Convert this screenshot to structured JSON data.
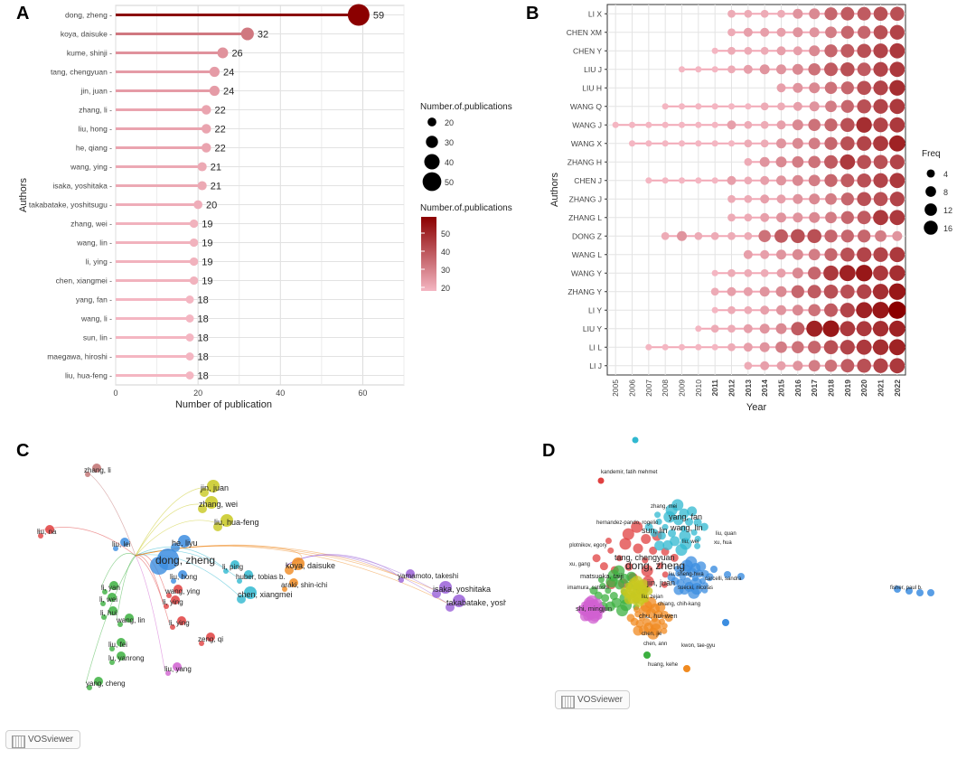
{
  "panels": {
    "a": "A",
    "b": "B",
    "c": "C",
    "d": "D"
  },
  "chart_data": [
    {
      "type": "lollipop",
      "panel": "A",
      "xlabel": "Number of publication",
      "ylabel": "Authors",
      "xlim": [
        0,
        70
      ],
      "xticks": [
        0,
        20,
        40,
        60
      ],
      "categories": [
        "dong, zheng",
        "koya, daisuke",
        "kume, shinji",
        "tang, chengyuan",
        "jin, juan",
        "zhang, li",
        "liu, hong",
        "he, qiang",
        "wang, ying",
        "isaka, yoshitaka",
        "takabatake, yoshitsugu",
        "zhang, wei",
        "wang, lin",
        "li, ying",
        "chen, xiangmei",
        "yang, fan",
        "wang, li",
        "sun, lin",
        "maegawa, hiroshi",
        "liu, hua-feng"
      ],
      "values": [
        59,
        32,
        26,
        24,
        24,
        22,
        22,
        22,
        21,
        21,
        20,
        19,
        19,
        19,
        19,
        18,
        18,
        18,
        18,
        18
      ],
      "legend_size_title": "Number.of.publications",
      "legend_size_values": [
        20,
        30,
        40,
        50
      ],
      "legend_color_title": "Number.of.publications",
      "legend_color_values": [
        20,
        30,
        40,
        50
      ],
      "color_low": "#f4b6c2",
      "color_high": "#8b0000"
    },
    {
      "type": "timeline-bubble",
      "panel": "B",
      "xlabel": "Year",
      "ylabel": "Authors",
      "years": [
        "2005",
        "2006",
        "2007",
        "2008",
        "2009",
        "2010",
        "2011",
        "2012",
        "2013",
        "2014",
        "2015",
        "2016",
        "2017",
        "2018",
        "2019",
        "2020",
        "2021",
        "2022"
      ],
      "authors": [
        "LI X",
        "CHEN XM",
        "CHEN Y",
        "LIU J",
        "LIU H",
        "WANG Q",
        "WANG J",
        "WANG X",
        "ZHANG H",
        "CHEN J",
        "ZHANG J",
        "ZHANG L",
        "DONG Z",
        "WANG L",
        "WANG Y",
        "ZHANG Y",
        "LI Y",
        "LIU Y",
        "LI L",
        "LI J"
      ],
      "series": [
        {
          "name": "LI X",
          "start": 2012,
          "freq": [
            2,
            2,
            2,
            2,
            4,
            5,
            8,
            9,
            9,
            10,
            10
          ]
        },
        {
          "name": "CHEN XM",
          "start": 2012,
          "freq": [
            2,
            3,
            3,
            3,
            4,
            4,
            6,
            8,
            8,
            10,
            11
          ]
        },
        {
          "name": "CHEN Y",
          "start": 2011,
          "freq": [
            1,
            2,
            2,
            2,
            3,
            3,
            5,
            8,
            9,
            10,
            11,
            12
          ]
        },
        {
          "name": "LIU J",
          "start": 2009,
          "freq": [
            1,
            1,
            1,
            2,
            3,
            4,
            4,
            5,
            7,
            9,
            10,
            9,
            11,
            12
          ]
        },
        {
          "name": "LIU H",
          "start": 2015,
          "freq": [
            3,
            4,
            5,
            7,
            8,
            10,
            11,
            13
          ]
        },
        {
          "name": "WANG Q",
          "start": 2008,
          "freq": [
            1,
            1,
            1,
            1,
            1,
            1,
            2,
            2,
            3,
            4,
            6,
            8,
            10,
            11,
            12
          ]
        },
        {
          "name": "WANG J",
          "start": 2005,
          "freq": [
            1,
            1,
            1,
            1,
            1,
            1,
            1,
            3,
            2,
            2,
            3,
            5,
            7,
            8,
            10,
            13,
            11,
            12
          ]
        },
        {
          "name": "WANG X",
          "start": 2006,
          "freq": [
            1,
            1,
            1,
            1,
            1,
            1,
            1,
            2,
            2,
            4,
            5,
            6,
            8,
            10,
            11,
            12,
            14
          ]
        },
        {
          "name": "ZHANG H",
          "start": 2013,
          "freq": [
            2,
            4,
            5,
            6,
            7,
            9,
            12,
            10,
            10,
            11
          ]
        },
        {
          "name": "CHEN J",
          "start": 2007,
          "freq": [
            1,
            1,
            1,
            1,
            1,
            3,
            2,
            3,
            4,
            5,
            6,
            8,
            9,
            10,
            11,
            12
          ]
        },
        {
          "name": "ZHANG J",
          "start": 2012,
          "freq": [
            2,
            2,
            3,
            3,
            4,
            5,
            6,
            8,
            10,
            10,
            11
          ]
        },
        {
          "name": "ZHANG L",
          "start": 2012,
          "freq": [
            2,
            2,
            3,
            4,
            4,
            5,
            6,
            8,
            9,
            12,
            12
          ]
        },
        {
          "name": "DONG Z",
          "start": 2008,
          "freq": [
            2,
            4,
            2,
            2,
            2,
            2,
            7,
            9,
            10,
            10,
            8,
            8,
            8,
            6,
            4
          ]
        },
        {
          "name": "WANG L",
          "start": 2013,
          "freq": [
            3,
            3,
            4,
            5,
            6,
            8,
            10,
            11,
            11,
            12
          ]
        },
        {
          "name": "WANG Y",
          "start": 2011,
          "freq": [
            1,
            2,
            2,
            2,
            3,
            5,
            8,
            12,
            14,
            15,
            12,
            13
          ]
        },
        {
          "name": "ZHANG Y",
          "start": 2011,
          "freq": [
            2,
            3,
            3,
            4,
            5,
            8,
            9,
            10,
            10,
            11,
            13,
            15
          ]
        },
        {
          "name": "LI Y",
          "start": 2011,
          "freq": [
            1,
            2,
            2,
            3,
            4,
            5,
            7,
            9,
            11,
            14,
            15,
            17
          ]
        },
        {
          "name": "LIU Y",
          "start": 2010,
          "freq": [
            1,
            2,
            2,
            3,
            4,
            5,
            9,
            14,
            15,
            12,
            12,
            13,
            14
          ]
        },
        {
          "name": "LI L",
          "start": 2007,
          "freq": [
            1,
            1,
            1,
            1,
            1,
            2,
            3,
            4,
            6,
            7,
            8,
            10,
            11,
            12,
            13,
            14
          ]
        },
        {
          "name": "LI J",
          "start": 2013,
          "freq": [
            2,
            3,
            3,
            4,
            6,
            7,
            9,
            10,
            11,
            12
          ]
        }
      ],
      "legend_title": "Freq",
      "legend_values": [
        4,
        8,
        12,
        16
      ],
      "color_low": "#f4b6c2",
      "color_high": "#8b0000"
    }
  ],
  "network_c": {
    "logo": "VOSviewer",
    "labels": [
      {
        "text": "zhang, li",
        "c": "#c07070",
        "size": "s"
      },
      {
        "text": "liu, na",
        "c": "#e04040",
        "size": "s"
      },
      {
        "text": "jin, juan",
        "c": "#c8c820",
        "size": "m"
      },
      {
        "text": "zhang, wei",
        "c": "#c8c820",
        "size": "m"
      },
      {
        "text": "liu, hua-feng",
        "c": "#c8c820",
        "size": "m"
      },
      {
        "text": "liu, lei",
        "c": "#3c8de0",
        "size": "s"
      },
      {
        "text": "he, liyu",
        "c": "#3c8de0",
        "size": "m"
      },
      {
        "text": "dong, zheng",
        "c": "#3c8de0",
        "size": "l"
      },
      {
        "text": "liu, hong",
        "c": "#3c8de0",
        "size": "s"
      },
      {
        "text": "wang, ying",
        "c": "#e04040",
        "size": "s"
      },
      {
        "text": "li, ying",
        "c": "#e04040",
        "size": "s"
      },
      {
        "text": "li, ying",
        "c": "#e04040",
        "size": "s"
      },
      {
        "text": "zeng, qi",
        "c": "#e04040",
        "size": "s"
      },
      {
        "text": "liu, yang",
        "c": "#d060d0",
        "size": "s"
      },
      {
        "text": "huber, tobias b.",
        "c": "#30b8d0",
        "size": "s"
      },
      {
        "text": "li, ping",
        "c": "#30b8d0",
        "size": "s"
      },
      {
        "text": "chen, xiangmei",
        "c": "#30b8d0",
        "size": "m"
      },
      {
        "text": "koya, daisuke",
        "c": "#f08a20",
        "size": "m"
      },
      {
        "text": "araki, shin-ichi",
        "c": "#f08a20",
        "size": "s"
      },
      {
        "text": "yamamoto, takeshi",
        "c": "#9a60d8",
        "size": "s"
      },
      {
        "text": "isaka, yoshitaka",
        "c": "#9a60d8",
        "size": "m"
      },
      {
        "text": "takabatake, yoshitsugu",
        "c": "#9a60d8",
        "size": "m"
      },
      {
        "text": "li, yan",
        "c": "#3cb040",
        "size": "s"
      },
      {
        "text": "li, wei",
        "c": "#3cb040",
        "size": "s"
      },
      {
        "text": "li, hui",
        "c": "#3cb040",
        "size": "s"
      },
      {
        "text": "wang, lin",
        "c": "#3cb040",
        "size": "s"
      },
      {
        "text": "liu, fei",
        "c": "#3cb040",
        "size": "s"
      },
      {
        "text": "lu, yanrong",
        "c": "#3cb040",
        "size": "s"
      },
      {
        "text": "yang, cheng",
        "c": "#3cb040",
        "size": "s"
      }
    ]
  },
  "network_d": {
    "logo": "VOSviewer",
    "labels": [
      {
        "text": "kandemir, fatih mehmet",
        "c": "#e04040",
        "size": "xs"
      },
      {
        "text": "zhang, mei",
        "c": "#30b8d0",
        "size": "xs"
      },
      {
        "text": "yang, fan",
        "c": "#30b8d0",
        "size": "m"
      },
      {
        "text": "hernandez-pando, rogelio",
        "c": "#e04040",
        "size": "xs"
      },
      {
        "text": "wang, lin",
        "c": "#30b8d0",
        "size": "m"
      },
      {
        "text": "sun, lin",
        "c": "#e04040",
        "size": "m"
      },
      {
        "text": "liu, quan",
        "c": "#e04040",
        "size": "xs"
      },
      {
        "text": "liu, wei",
        "c": "#30b8d0",
        "size": "xs"
      },
      {
        "text": "xu, hua",
        "c": "#e04040",
        "size": "xs"
      },
      {
        "text": "plotnikov, egory",
        "c": "#e04040",
        "size": "xs"
      },
      {
        "text": "tang, chengyuan",
        "c": "#e04040",
        "size": "m"
      },
      {
        "text": "xu, gang",
        "c": "#e04040",
        "size": "xs"
      },
      {
        "text": "dong, zheng",
        "c": "#e04040",
        "size": "l"
      },
      {
        "text": "liu, sheng-hwa",
        "c": "#3c8de0",
        "size": "xs"
      },
      {
        "text": "matsuoka, taiji",
        "c": "#3cb040",
        "size": "s"
      },
      {
        "text": "carcelli, sandra",
        "c": "#3c8de0",
        "size": "xs"
      },
      {
        "text": "jin, juan",
        "c": "#3cb040",
        "size": "m"
      },
      {
        "text": "imamura, satoshi",
        "c": "#3cb040",
        "size": "xs"
      },
      {
        "text": "suecki, nicolas",
        "c": "#3c8de0",
        "size": "xs"
      },
      {
        "text": "liu, zejan",
        "c": "#c8c820",
        "size": "xs"
      },
      {
        "text": "chiang, chih-kang",
        "c": "#f08a20",
        "size": "xs"
      },
      {
        "text": "shi, mingjun",
        "c": "#d060d0",
        "size": "s"
      },
      {
        "text": "chu, hui-wen",
        "c": "#f08a20",
        "size": "s"
      },
      {
        "text": "fisher, paul b.",
        "c": "#3c8de0",
        "size": "xs"
      },
      {
        "text": "chen, jie",
        "c": "#f08a20",
        "size": "xs"
      },
      {
        "text": "kwon, tae-gyu",
        "c": "#3c8de0",
        "size": "xs"
      },
      {
        "text": "chen, ann",
        "c": "#3cb040",
        "size": "xs"
      },
      {
        "text": "huang, kehe",
        "c": "#f08a20",
        "size": "xs"
      }
    ]
  }
}
